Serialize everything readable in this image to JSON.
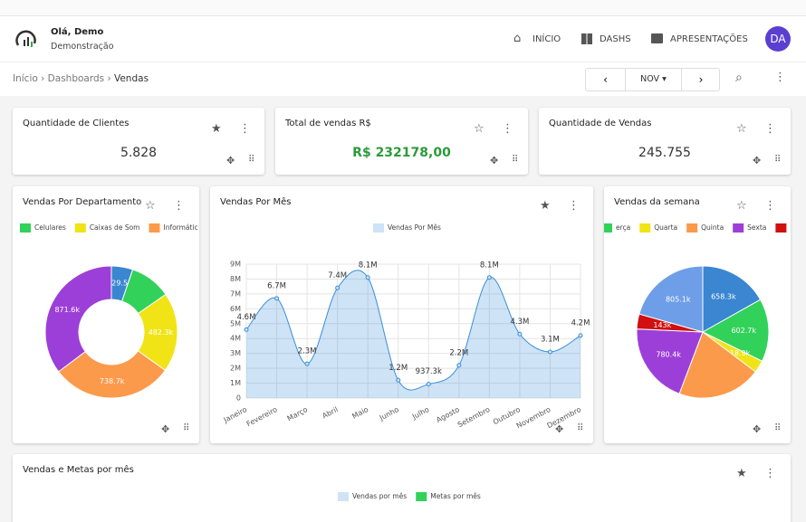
{
  "header": {
    "greeting": "Olá, Demo",
    "subtitle": "Demonstração",
    "nav": [
      "INÍCIO",
      "DASHS",
      "APRESENTAÇÕES"
    ],
    "avatar": "DA"
  },
  "breadcrumb": [
    "Início",
    "Dashboards",
    "Vendas"
  ],
  "month": "NOV",
  "kpis": [
    {
      "title": "Quantidade de Clientes",
      "value": "5.828"
    },
    {
      "title": "Total de vendas R$",
      "value": "R$ 232178,00"
    },
    {
      "title": "Quantidade de Vendas",
      "value": "245.755"
    }
  ],
  "chart_data": [
    {
      "type": "donut",
      "title": "Vendas Por Departamento",
      "categories": [
        null,
        "Celulares",
        "Caixas de Som",
        "Informátic",
        null
      ],
      "values": [
        129500,
        250000,
        482300,
        738700,
        871600
      ],
      "value_labels": [
        "129.5k",
        null,
        "482.3k",
        "738.7k",
        "871.6k"
      ],
      "colors": [
        "#3a86d1",
        "#32d25a",
        "#f0e417",
        "#fb9a4a",
        "#9c3fd8"
      ]
    },
    {
      "type": "line",
      "title": "Vendas Por Mês",
      "categories": [
        "Janeiro",
        "Fevereiro",
        "Março",
        "Abril",
        "Maio",
        "Junho",
        "Julho",
        "Agosto",
        "Setembro",
        "Outubro",
        "Novembro",
        "Dezembro"
      ],
      "series": [
        {
          "name": "Vendas Por Mês",
          "color": "#3a8fd8",
          "values": [
            4600000,
            6700000,
            2300000,
            7400000,
            8100000,
            1200000,
            937300,
            2200000,
            8100000,
            4300000,
            3100000,
            4200000
          ],
          "value_labels": [
            "4.6M",
            "6.7M",
            "2.3M",
            "7.4M",
            "8.1M",
            "1.2M",
            "937.3k",
            "2.2M",
            "8.1M",
            "4.3M",
            "3.1M",
            "4.2M"
          ]
        }
      ],
      "ylim": [
        0,
        9000000
      ],
      "yticks": [
        0,
        {
          "value": 1000000,
          "label": "1M"
        },
        {
          "value": 2000000,
          "label": "2M"
        },
        {
          "value": 3000000,
          "label": "3M"
        },
        {
          "value": 4000000,
          "label": "4M"
        },
        {
          "value": 5000000,
          "label": "5M"
        },
        {
          "value": 6000000,
          "label": "6M"
        },
        {
          "value": 7000000,
          "label": "7M"
        },
        {
          "value": 8000000,
          "label": "8M"
        },
        {
          "value": 9000000,
          "label": "9M"
        }
      ],
      "grid": true
    },
    {
      "type": "pie",
      "title": "Vendas da semana",
      "categories": [
        null,
        "erça",
        "Quarta",
        "Quinta",
        "Sexta",
        null,
        null
      ],
      "values": [
        658300,
        602700,
        118900,
        800000,
        780400,
        143000,
        805100
      ],
      "value_labels": [
        "658.3k",
        "602.7k",
        "118.9k",
        null,
        "780.4k",
        "143k",
        "805.1k"
      ],
      "colors": [
        "#3a86d1",
        "#32d25a",
        "#f0e417",
        "#fb9a4a",
        "#9c3fd8",
        "#d10f0f",
        "#6f9ee8"
      ]
    },
    {
      "type": "bar",
      "title": "Vendas e Metas por mês",
      "series": [
        {
          "name": "Vendas por mês",
          "color": "#cfe3f7"
        },
        {
          "name": "Metas por mês",
          "color": "#32d25a"
        }
      ]
    }
  ]
}
